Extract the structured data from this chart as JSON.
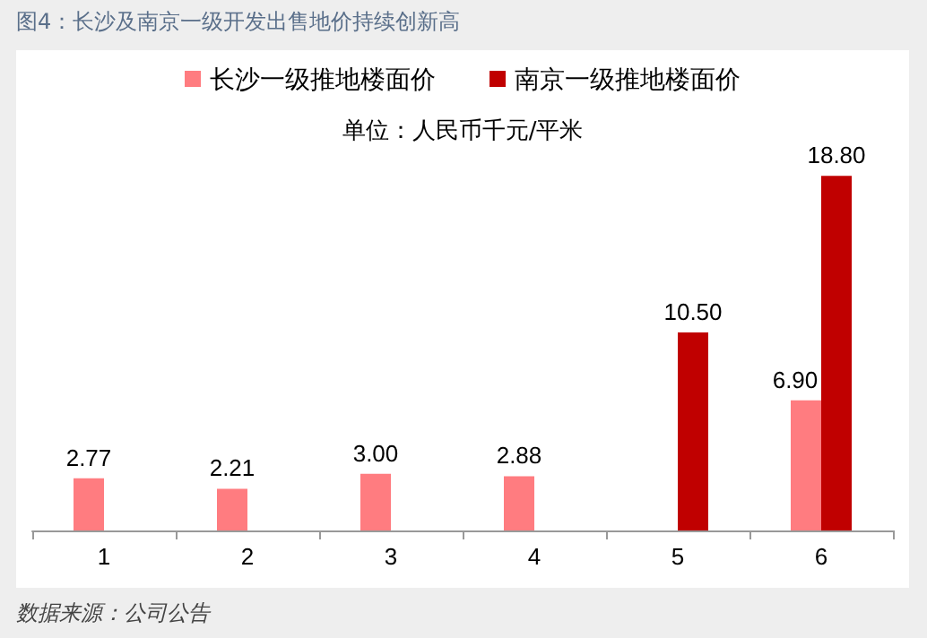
{
  "chart_data": {
    "type": "bar",
    "title": "图4：长沙及南京一级开发出售地价持续创新高",
    "subtitle": "单位：人民币千元/平米",
    "categories": [
      "1",
      "2",
      "3",
      "4",
      "5",
      "6"
    ],
    "series": [
      {
        "name": "长沙一级推地楼面价",
        "color": "#ff7c80",
        "values": [
          2.77,
          2.21,
          3.0,
          2.88,
          null,
          6.9
        ],
        "value_labels": [
          "2.77",
          "2.21",
          "3.00",
          "2.88",
          null,
          "6.90"
        ]
      },
      {
        "name": "南京一级推地楼面价",
        "color": "#c00000",
        "values": [
          null,
          null,
          null,
          null,
          10.5,
          18.8
        ],
        "value_labels": [
          null,
          null,
          null,
          null,
          "10.50",
          "18.80"
        ]
      }
    ],
    "legend": "top",
    "grid": false,
    "annotations": [
      "数据来源：公司公告"
    ]
  }
}
